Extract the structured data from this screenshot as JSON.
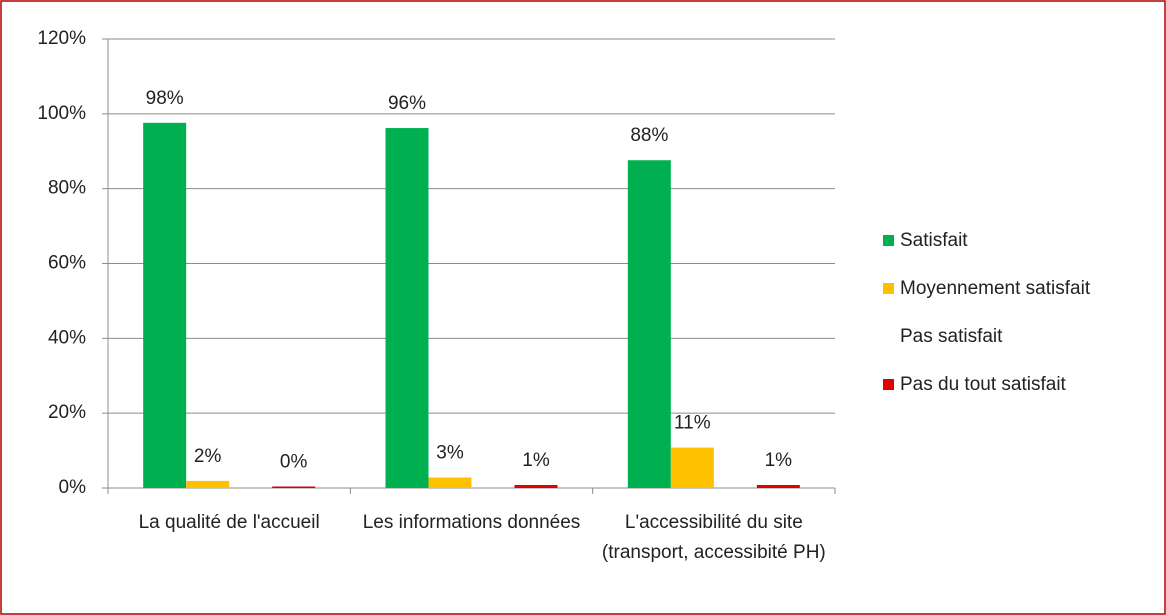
{
  "chart_data": {
    "type": "bar",
    "categories": [
      "La qualité de l'accueil",
      "Les informations données",
      "L'accessibilité du site (transport, accessibité PH)"
    ],
    "series": [
      {
        "name": "Satisfait",
        "color": "#00b050",
        "values": [
          97.6,
          96.2,
          87.6
        ],
        "value_labels": [
          "98%",
          "96%",
          "88%"
        ]
      },
      {
        "name": "Moyennement satisfait",
        "color": "#ffc000",
        "values": [
          1.9,
          2.8,
          10.8
        ],
        "value_labels": [
          "2%",
          "3%",
          "11%"
        ]
      },
      {
        "name": "Pas satisfait",
        "color": "#ffffff",
        "values": [
          null,
          null,
          null
        ]
      },
      {
        "name": "Pas du tout satisfait",
        "color": "#e00000",
        "values": [
          0.4,
          0.8,
          0.8
        ],
        "value_labels": [
          "0%",
          "1%",
          "1%"
        ]
      }
    ],
    "ylim": [
      0,
      120
    ],
    "yticks": [
      {
        "value": 0,
        "label": "0%"
      },
      {
        "value": 20,
        "label": "20%"
      },
      {
        "value": 40,
        "label": "40%"
      },
      {
        "value": 60,
        "label": "60%"
      },
      {
        "value": 80,
        "label": "80%"
      },
      {
        "value": 100,
        "label": "100%"
      },
      {
        "value": 120,
        "label": "120%"
      }
    ],
    "grid": true,
    "legend": "right"
  }
}
